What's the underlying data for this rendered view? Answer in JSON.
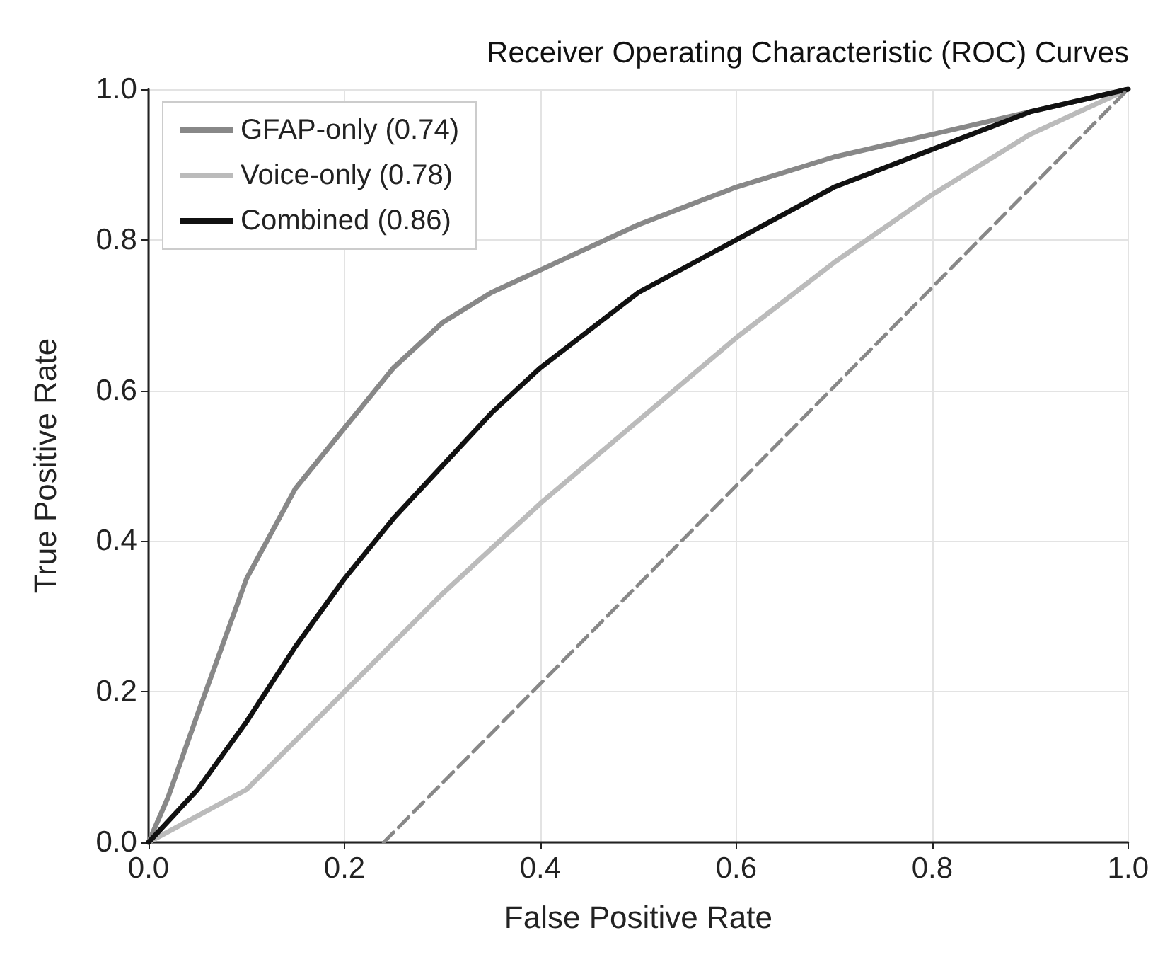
{
  "chart_data": {
    "type": "line",
    "title": "Receiver Operating Characteristic (ROC) Curves",
    "xlabel": "False Positive Rate",
    "ylabel": "True Positive Rate",
    "xlim": [
      0,
      1
    ],
    "ylim": [
      0,
      1
    ],
    "xticks": [
      {
        "value": 0,
        "label": "0.0"
      },
      {
        "value": 0.2,
        "label": "0.2"
      },
      {
        "value": 0.4,
        "label": "0.4"
      },
      {
        "value": 0.6,
        "label": "0.6"
      },
      {
        "value": 0.8,
        "label": "0.8"
      },
      {
        "value": 1,
        "label": "1.0"
      }
    ],
    "yticks": [
      {
        "value": 0,
        "label": "0.0"
      },
      {
        "value": 0.2,
        "label": "0.2"
      },
      {
        "value": 0.4,
        "label": "0.4"
      },
      {
        "value": 0.6,
        "label": "0.6"
      },
      {
        "value": 0.8,
        "label": "0.8"
      },
      {
        "value": 1,
        "label": "1.0"
      }
    ],
    "grid": true,
    "legend": "top left",
    "marker": "none",
    "line_style": "solid",
    "series": [
      {
        "name": "GFAP-only (0.74)",
        "color": "#888888",
        "x": [
          0,
          0.02,
          0.05,
          0.1,
          0.15,
          0.2,
          0.25,
          0.3,
          0.35,
          0.4,
          0.5,
          0.6,
          0.7,
          0.8,
          0.9,
          1
        ],
        "values": [
          0,
          0.06,
          0.17,
          0.35,
          0.47,
          0.55,
          0.63,
          0.69,
          0.73,
          0.76,
          0.82,
          0.87,
          0.91,
          0.94,
          0.97,
          1
        ]
      },
      {
        "name": "Voice-only (0.78)",
        "color": "#bbbbbb",
        "x": [
          0,
          0.1,
          0.2,
          0.3,
          0.4,
          0.5,
          0.6,
          0.7,
          0.8,
          0.9,
          1
        ],
        "values": [
          0,
          0.07,
          0.2,
          0.33,
          0.45,
          0.56,
          0.67,
          0.77,
          0.86,
          0.94,
          1
        ]
      },
      {
        "name": "Combined (0.86)",
        "color": "#111111",
        "x": [
          0,
          0.05,
          0.1,
          0.15,
          0.2,
          0.25,
          0.3,
          0.35,
          0.4,
          0.5,
          0.6,
          0.7,
          0.8,
          0.9,
          1
        ],
        "values": [
          0,
          0.07,
          0.16,
          0.26,
          0.35,
          0.43,
          0.5,
          0.57,
          0.63,
          0.73,
          0.8,
          0.87,
          0.92,
          0.97,
          1
        ]
      },
      {
        "color": "#888888",
        "line_style": "dashed",
        "x": [
          0.24,
          1
        ],
        "values": [
          0,
          1
        ]
      }
    ]
  }
}
